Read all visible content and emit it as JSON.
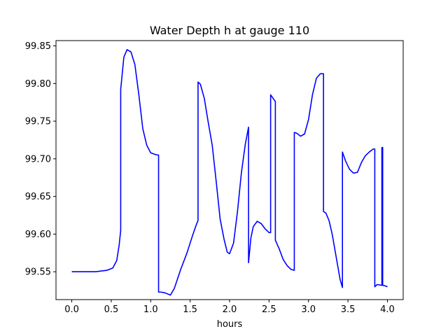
{
  "chart_data": {
    "type": "line",
    "title": "Water Depth h at gauge 110",
    "xlabel": "hours",
    "ylabel": "",
    "xlim": [
      -0.2,
      4.2
    ],
    "ylim": [
      99.513,
      99.857
    ],
    "xticks": [
      0.0,
      0.5,
      1.0,
      1.5,
      2.0,
      2.5,
      3.0,
      3.5,
      4.0
    ],
    "xtick_labels": [
      "0.0",
      "0.5",
      "1.0",
      "1.5",
      "2.0",
      "2.5",
      "3.0",
      "3.5",
      "4.0"
    ],
    "yticks": [
      99.55,
      99.6,
      99.65,
      99.7,
      99.75,
      99.8,
      99.85
    ],
    "ytick_labels": [
      "99.55",
      "99.60",
      "99.65",
      "99.70",
      "99.75",
      "99.80",
      "99.85"
    ],
    "grid": false,
    "series": [
      {
        "color": "#0000ff",
        "x": [
          0.0,
          0.3,
          0.45,
          0.52,
          0.57,
          0.6,
          0.62,
          0.62,
          0.66,
          0.7,
          0.75,
          0.8,
          0.85,
          0.9,
          0.95,
          1.0,
          1.05,
          1.09,
          1.1,
          1.1,
          1.13,
          1.18,
          1.25,
          1.3,
          1.38,
          1.46,
          1.53,
          1.58,
          1.6,
          1.6,
          1.63,
          1.68,
          1.73,
          1.78,
          1.83,
          1.88,
          1.93,
          1.97,
          2.0,
          2.05,
          2.1,
          2.15,
          2.2,
          2.24,
          2.24,
          2.27,
          2.3,
          2.35,
          2.4,
          2.45,
          2.5,
          2.52,
          2.52,
          2.58,
          2.58,
          2.63,
          2.68,
          2.73,
          2.78,
          2.82,
          2.82,
          2.85,
          2.9,
          2.95,
          3.0,
          3.05,
          3.1,
          3.15,
          3.19,
          3.19,
          3.22,
          3.26,
          3.3,
          3.35,
          3.4,
          3.43,
          3.43,
          3.47,
          3.52,
          3.57,
          3.62,
          3.67,
          3.72,
          3.77,
          3.82,
          3.84,
          3.84,
          3.87,
          3.93,
          3.93,
          3.94,
          3.94,
          3.98,
          4.0
        ],
        "y": [
          99.55,
          99.55,
          99.552,
          99.555,
          99.565,
          99.585,
          99.605,
          99.792,
          99.835,
          99.845,
          99.842,
          99.825,
          99.785,
          99.74,
          99.718,
          99.708,
          99.706,
          99.705,
          99.705,
          99.523,
          99.523,
          99.522,
          99.519,
          99.528,
          99.553,
          99.575,
          99.598,
          99.613,
          99.618,
          99.802,
          99.799,
          99.78,
          99.748,
          99.718,
          99.67,
          99.62,
          99.593,
          99.576,
          99.574,
          99.588,
          99.63,
          99.682,
          99.72,
          99.742,
          99.562,
          99.595,
          99.61,
          99.617,
          99.614,
          99.607,
          99.602,
          99.602,
          99.785,
          99.776,
          99.592,
          99.58,
          99.566,
          99.558,
          99.553,
          99.552,
          99.735,
          99.734,
          99.73,
          99.733,
          99.752,
          99.785,
          99.807,
          99.813,
          99.813,
          99.63,
          99.628,
          99.618,
          99.6,
          99.57,
          99.54,
          99.529,
          99.709,
          99.697,
          99.686,
          99.681,
          99.682,
          99.695,
          99.704,
          99.709,
          99.713,
          99.713,
          99.53,
          99.533,
          99.532,
          99.715,
          99.715,
          99.532,
          99.531,
          99.53
        ]
      }
    ]
  }
}
